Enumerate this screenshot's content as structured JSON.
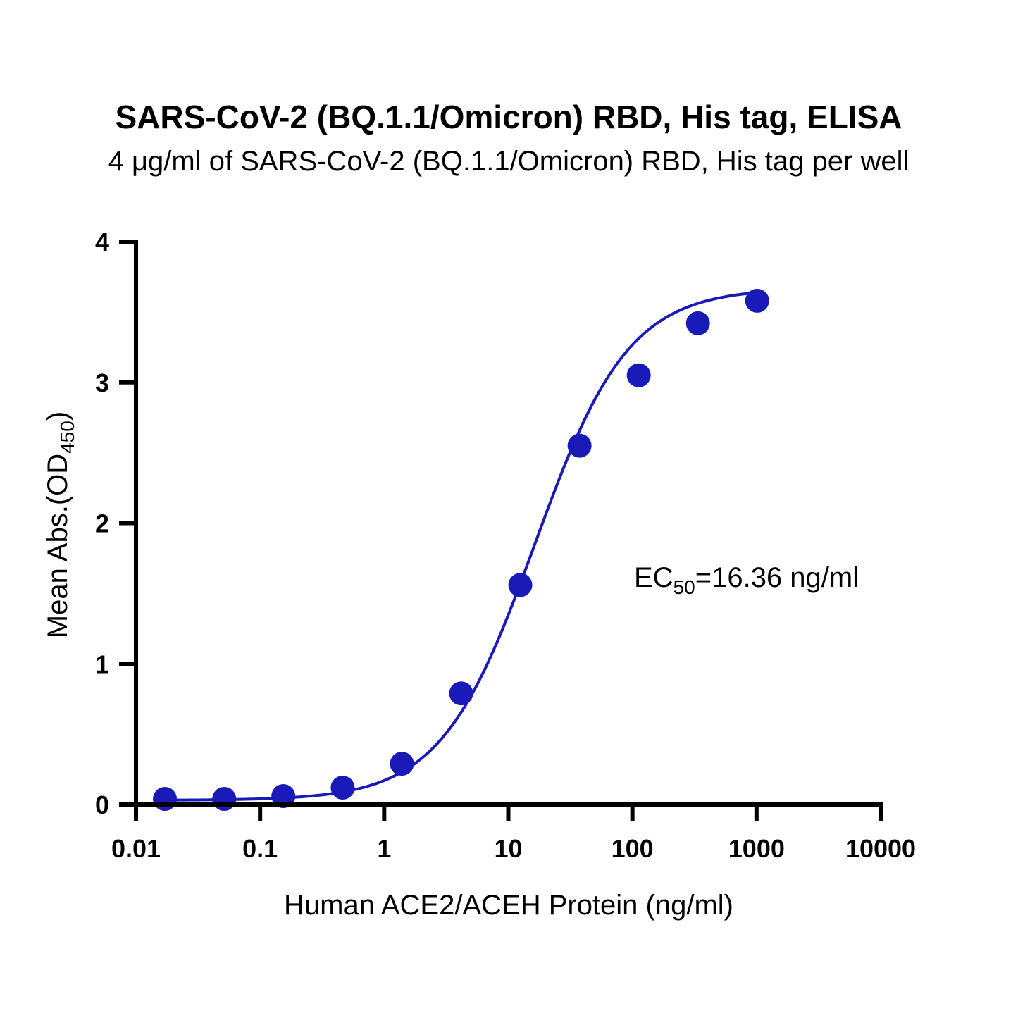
{
  "chart_data": {
    "type": "scatter",
    "title": "SARS-CoV-2 (BQ.1.1/Omicron) RBD, His tag, ELISA",
    "subtitle": "4 μg/ml of SARS-CoV-2 (BQ.1.1/Omicron) RBD, His tag per well",
    "xlabel": "Human ACE2/ACEH Protein (ng/ml)",
    "ylabel": {
      "main": "Mean Abs.(OD",
      "sub": "450",
      "end": ")"
    },
    "x_scale": "log",
    "xlim": [
      0.01,
      10000
    ],
    "ylim": [
      0,
      4
    ],
    "x_ticks": [
      {
        "value": 0.01,
        "label": "0.01"
      },
      {
        "value": 0.1,
        "label": "0.1"
      },
      {
        "value": 1,
        "label": "1"
      },
      {
        "value": 10,
        "label": "10"
      },
      {
        "value": 100,
        "label": "100"
      },
      {
        "value": 1000,
        "label": "1000"
      },
      {
        "value": 10000,
        "label": "10000"
      }
    ],
    "y_ticks": [
      {
        "value": 0,
        "label": "0"
      },
      {
        "value": 1,
        "label": "1"
      },
      {
        "value": 2,
        "label": "2"
      },
      {
        "value": 3,
        "label": "3"
      },
      {
        "value": 4,
        "label": "4"
      }
    ],
    "grid": false,
    "series": [
      {
        "color": "#1a1ab8",
        "points": [
          {
            "x": 0.0171,
            "y": 0.04
          },
          {
            "x": 0.0514,
            "y": 0.04
          },
          {
            "x": 0.154,
            "y": 0.06
          },
          {
            "x": 0.463,
            "y": 0.12
          },
          {
            "x": 1.39,
            "y": 0.29
          },
          {
            "x": 4.17,
            "y": 0.79
          },
          {
            "x": 12.5,
            "y": 1.56
          },
          {
            "x": 37.5,
            "y": 2.55
          },
          {
            "x": 112.5,
            "y": 3.05
          },
          {
            "x": 337.5,
            "y": 3.42
          },
          {
            "x": 1012.5,
            "y": 3.58
          }
        ],
        "fit": {
          "model": "4PL",
          "bottom": 0.03,
          "top": 3.67,
          "ec50": 16.36,
          "hill": 1.15
        }
      }
    ],
    "annotation": {
      "main": "EC",
      "sub": "50",
      "end": "=16.36 ng/ml"
    }
  }
}
